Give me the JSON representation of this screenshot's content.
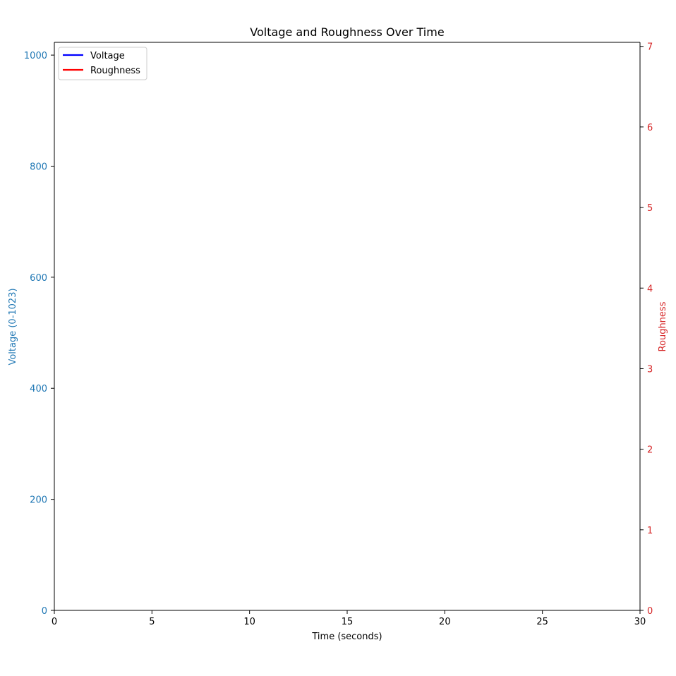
{
  "chart_data": {
    "type": "line",
    "title": "Voltage and Roughness Over Time",
    "xlabel": "Time (seconds)",
    "ylabel_left": "Voltage (0-1023)",
    "ylabel_right": "Roughness",
    "xlim": [
      0,
      30
    ],
    "ylim_left": [
      0,
      1023
    ],
    "ylim_right": [
      0,
      7.05
    ],
    "x_ticks": [
      0,
      5,
      10,
      15,
      20,
      25,
      30
    ],
    "y_left_ticks": [
      0,
      200,
      400,
      600,
      800,
      1000
    ],
    "y_right_ticks": [
      0,
      1,
      2,
      3,
      4,
      5,
      6,
      7
    ],
    "grid": false,
    "legend_position": "top-left",
    "colors": {
      "left_axis": "#1f77b4",
      "right_axis": "#d62728",
      "voltage_line": "#0000ff",
      "roughness_line": "#ff0000"
    },
    "series": [
      {
        "name": "Voltage",
        "axis": "left",
        "color": "#0000ff",
        "x": [],
        "y": []
      },
      {
        "name": "Roughness",
        "axis": "right",
        "color": "#ff0000",
        "x": [],
        "y": []
      }
    ]
  }
}
